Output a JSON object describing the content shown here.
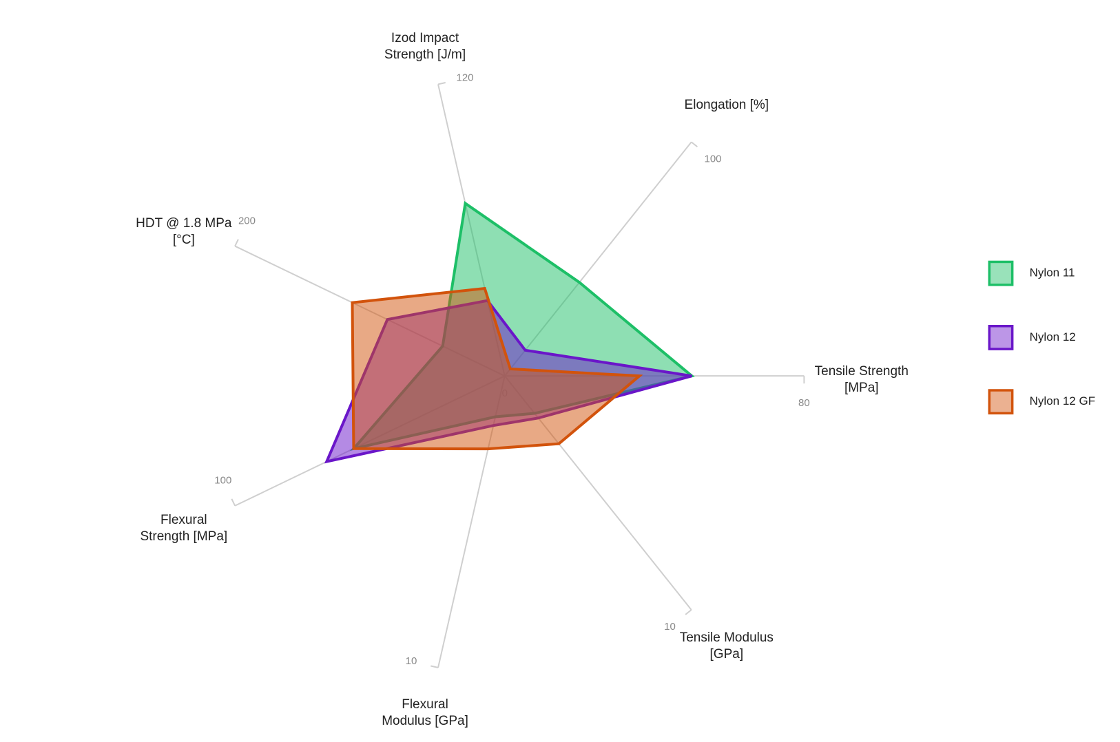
{
  "chart_data": {
    "type": "radar",
    "rmin": 0,
    "axes": [
      {
        "name": "Tensile Strength [MPa]",
        "max": 80
      },
      {
        "name": "Elongation [%]",
        "max": 100
      },
      {
        "name": "Izod Impact Strength [J/m]",
        "max": 120
      },
      {
        "name": "HDT @ 1.8 MPa [°C]",
        "max": 200
      },
      {
        "name": "Flexural Strength [MPa]",
        "max": 100
      },
      {
        "name": "Flexural Modulus [GPa]",
        "max": 10
      },
      {
        "name": "Tensile Modulus [GPa]",
        "max": 10
      }
    ],
    "series": [
      {
        "name": "Nylon 11",
        "color": "#1dbf67",
        "values": [
          50,
          40,
          71,
          46,
          56,
          1.4,
          1.6
        ]
      },
      {
        "name": "Nylon 12",
        "color": "#6a16c9",
        "values": [
          50,
          11,
          31,
          87,
          66,
          1.7,
          1.8
        ]
      },
      {
        "name": "Nylon 12 GF",
        "color": "#d2530c",
        "values": [
          36,
          3,
          36,
          113,
          56,
          2.5,
          2.9
        ]
      }
    ],
    "legend": "right"
  }
}
